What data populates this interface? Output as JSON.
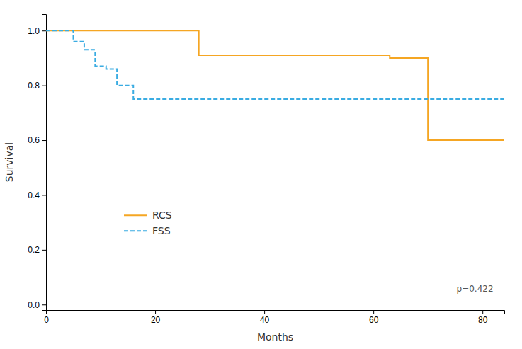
{
  "chart_data": {
    "type": "line",
    "xlabel": "Months",
    "ylabel": "Survival",
    "xlim": [
      0,
      84
    ],
    "ylim": [
      -0.02,
      1.06
    ],
    "xticks": [
      0,
      20,
      40,
      60,
      80
    ],
    "yticks": [
      {
        "value": 0.0,
        "label": "0.0"
      },
      {
        "value": 0.2,
        "label": "0.2"
      },
      {
        "value": 0.4,
        "label": "0.4"
      },
      {
        "value": 0.6,
        "label": "0.6"
      },
      {
        "value": 0.8,
        "label": "0.8"
      },
      {
        "value": 1.0,
        "label": "1.0"
      }
    ],
    "grid": false,
    "legend": "lower left",
    "series": [
      {
        "name": "RCS",
        "color": "#F5A623",
        "line_style": "solid",
        "x": [
          0,
          28,
          28,
          63,
          63,
          70,
          70,
          84
        ],
        "values": [
          1.0,
          1.0,
          0.91,
          0.91,
          0.9,
          0.9,
          0.6,
          0.6
        ]
      },
      {
        "name": "FSS",
        "color": "#3AACE2",
        "line_style": "dashed",
        "x": [
          0,
          5,
          5,
          7,
          7,
          9,
          9,
          11,
          11,
          13,
          13,
          16,
          16,
          19,
          19,
          21,
          21,
          84
        ],
        "values": [
          1.0,
          1.0,
          0.96,
          0.96,
          0.93,
          0.93,
          0.87,
          0.87,
          0.86,
          0.86,
          0.8,
          0.8,
          0.75,
          0.75,
          0.75,
          0.75,
          0.75,
          0.75
        ]
      }
    ],
    "annotations": [
      {
        "text": "p=0.422",
        "x": 82,
        "y": 0.04
      }
    ]
  }
}
